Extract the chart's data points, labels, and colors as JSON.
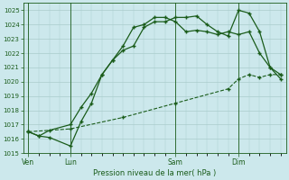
{
  "bg_color": "#cce8ec",
  "grid_color": "#aacccc",
  "line_color": "#1a5c1a",
  "title": "Pression niveau de la mer( hPa )",
  "ylim": [
    1015,
    1025.5
  ],
  "yticks": [
    1015,
    1016,
    1017,
    1018,
    1019,
    1020,
    1021,
    1022,
    1023,
    1024,
    1025
  ],
  "xtick_labels": [
    "Ven",
    "Lun",
    "Sam",
    "Dim"
  ],
  "xtick_positions": [
    0,
    4,
    14,
    20
  ],
  "total_points": 25,
  "series1_x": [
    0,
    1,
    2,
    4,
    5,
    6,
    7,
    8,
    9,
    10,
    11,
    12,
    13,
    14,
    15,
    16,
    17,
    18,
    19,
    20,
    21,
    22,
    23,
    24
  ],
  "series1": [
    1016.5,
    1016.2,
    1016.1,
    1015.5,
    1017.2,
    1018.5,
    1020.5,
    1021.5,
    1022.2,
    1022.5,
    1023.8,
    1024.2,
    1024.2,
    1024.5,
    1024.5,
    1024.6,
    1024.0,
    1023.5,
    1023.2,
    1025.0,
    1024.8,
    1023.5,
    1021.0,
    1020.5
  ],
  "series2_x": [
    0,
    1,
    2,
    4,
    5,
    6,
    7,
    8,
    9,
    10,
    11,
    12,
    13,
    14,
    15,
    16,
    17,
    18,
    19,
    20,
    21,
    22,
    23,
    24
  ],
  "series2": [
    1016.5,
    1016.2,
    1016.6,
    1017.0,
    1018.2,
    1019.2,
    1020.5,
    1021.5,
    1022.5,
    1023.8,
    1024.0,
    1024.5,
    1024.5,
    1024.2,
    1023.5,
    1023.6,
    1023.5,
    1023.3,
    1023.5,
    1023.3,
    1023.5,
    1022.0,
    1021.0,
    1020.2
  ],
  "series3_x": [
    0,
    4,
    9,
    14,
    19,
    20,
    21,
    22,
    23,
    24
  ],
  "series3": [
    1016.5,
    1016.7,
    1017.5,
    1018.5,
    1019.5,
    1020.2,
    1020.5,
    1020.3,
    1020.5,
    1020.5
  ]
}
